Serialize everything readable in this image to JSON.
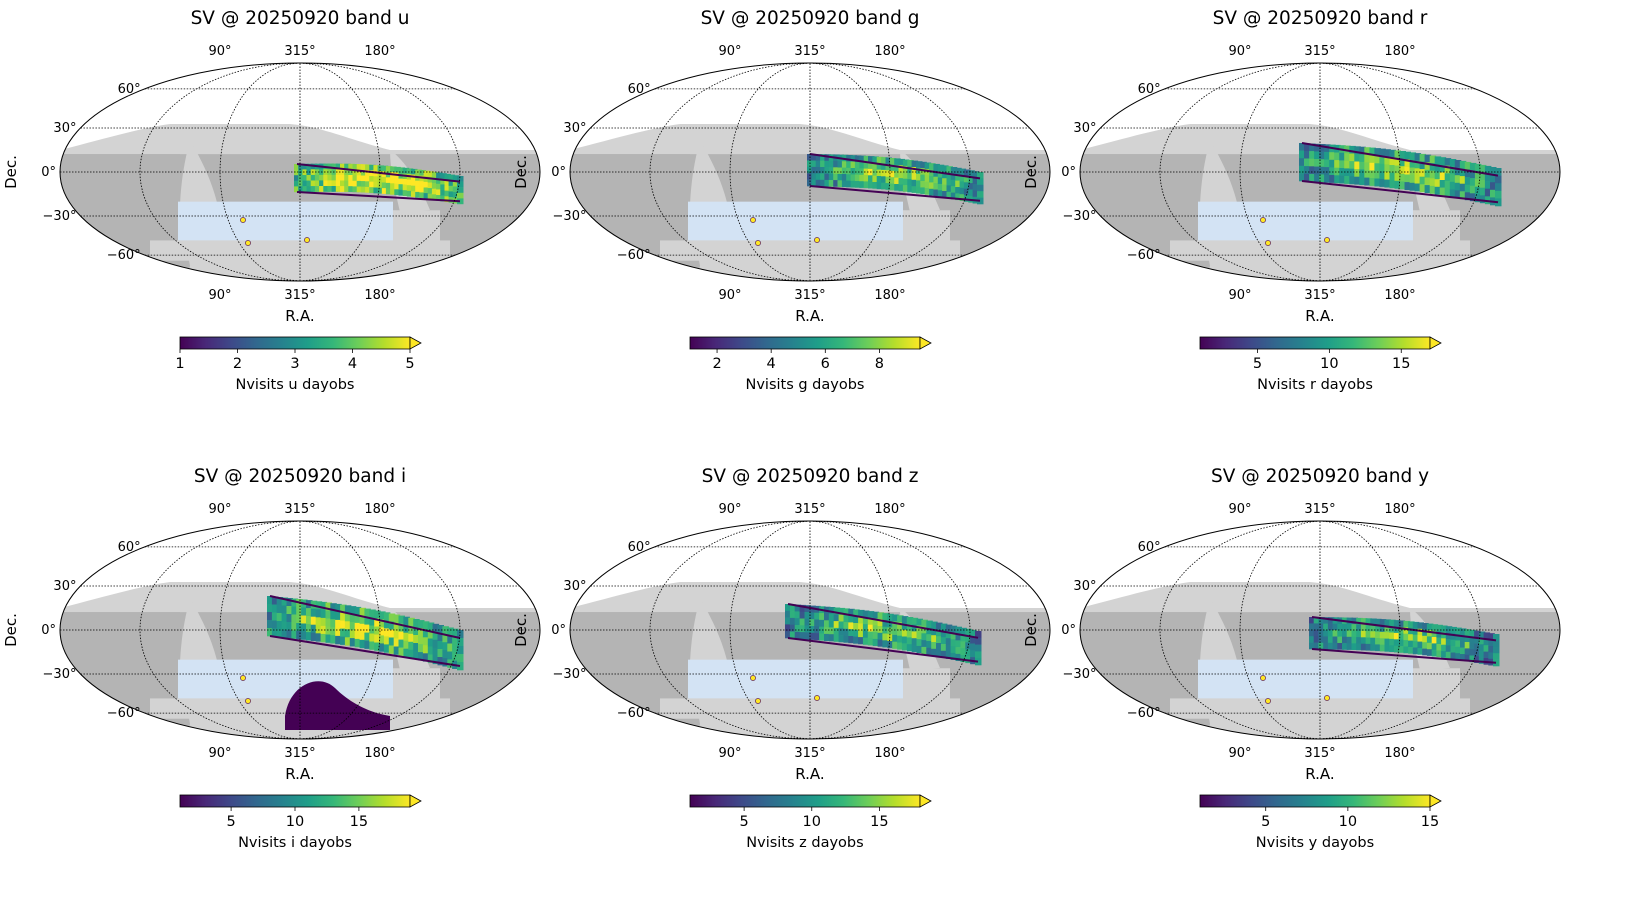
{
  "chart_data": [
    {
      "type": "heatmap",
      "title": "SV @ 20250920 band u",
      "projection": "mollweide",
      "xlabel": "R.A.",
      "ylabel": "Dec.",
      "ra_ticks": [
        "90°",
        "315°",
        "180°"
      ],
      "dec_ticks": [
        "60°",
        "30°",
        "0°",
        "−30°",
        "−60°"
      ],
      "colorbar": {
        "label": "Nvisits u dayobs",
        "ticks": [
          "1",
          "2",
          "3",
          "4",
          "5"
        ],
        "min": 1,
        "max": 5,
        "extend": "max",
        "cmap": "viridis"
      }
    },
    {
      "type": "heatmap",
      "title": "SV @ 20250920 band g",
      "projection": "mollweide",
      "xlabel": "R.A.",
      "ylabel": "Dec.",
      "ra_ticks": [
        "90°",
        "315°",
        "180°"
      ],
      "dec_ticks": [
        "60°",
        "30°",
        "0°",
        "−30°",
        "−60°"
      ],
      "colorbar": {
        "label": "Nvisits g dayobs",
        "ticks": [
          "2",
          "4",
          "6",
          "8"
        ],
        "min": 1,
        "max": 9.5,
        "extend": "max",
        "cmap": "viridis"
      }
    },
    {
      "type": "heatmap",
      "title": "SV @ 20250920 band r",
      "projection": "mollweide",
      "xlabel": "R.A.",
      "ylabel": "Dec.",
      "ra_ticks": [
        "90°",
        "315°",
        "180°"
      ],
      "dec_ticks": [
        "60°",
        "30°",
        "0°",
        "−30°",
        "−60°"
      ],
      "colorbar": {
        "label": "Nvisits r dayobs",
        "ticks": [
          "5",
          "10",
          "15"
        ],
        "min": 1,
        "max": 17,
        "extend": "max",
        "cmap": "viridis"
      }
    },
    {
      "type": "heatmap",
      "title": "SV @ 20250920 band i",
      "projection": "mollweide",
      "xlabel": "R.A.",
      "ylabel": "Dec.",
      "ra_ticks": [
        "90°",
        "315°",
        "180°"
      ],
      "dec_ticks": [
        "60°",
        "30°",
        "0°",
        "−30°",
        "−60°"
      ],
      "colorbar": {
        "label": "Nvisits i dayobs",
        "ticks": [
          "5",
          "10",
          "15"
        ],
        "min": 1,
        "max": 19,
        "extend": "max",
        "cmap": "viridis"
      }
    },
    {
      "type": "heatmap",
      "title": "SV @ 20250920 band z",
      "projection": "mollweide",
      "xlabel": "R.A.",
      "ylabel": "Dec.",
      "ra_ticks": [
        "90°",
        "315°",
        "180°"
      ],
      "dec_ticks": [
        "60°",
        "30°",
        "0°",
        "−30°",
        "−60°"
      ],
      "colorbar": {
        "label": "Nvisits z dayobs",
        "ticks": [
          "5",
          "10",
          "15"
        ],
        "min": 1,
        "max": 18,
        "extend": "max",
        "cmap": "viridis"
      }
    },
    {
      "type": "heatmap",
      "title": "SV @ 20250920 band y",
      "projection": "mollweide",
      "xlabel": "R.A.",
      "ylabel": "Dec.",
      "ra_ticks": [
        "90°",
        "315°",
        "180°"
      ],
      "dec_ticks": [
        "60°",
        "30°",
        "0°",
        "−30°",
        "−60°"
      ],
      "colorbar": {
        "label": "Nvisits y dayobs",
        "ticks": [
          "5",
          "10",
          "15"
        ],
        "min": 1,
        "max": 15,
        "extend": "max",
        "cmap": "viridis"
      }
    }
  ],
  "colors": {
    "footprint_dark": "#b4b4b4",
    "footprint_light": "#d3d3d3",
    "wfd_blue": "#d3e3f4",
    "graticule": "#000000"
  }
}
